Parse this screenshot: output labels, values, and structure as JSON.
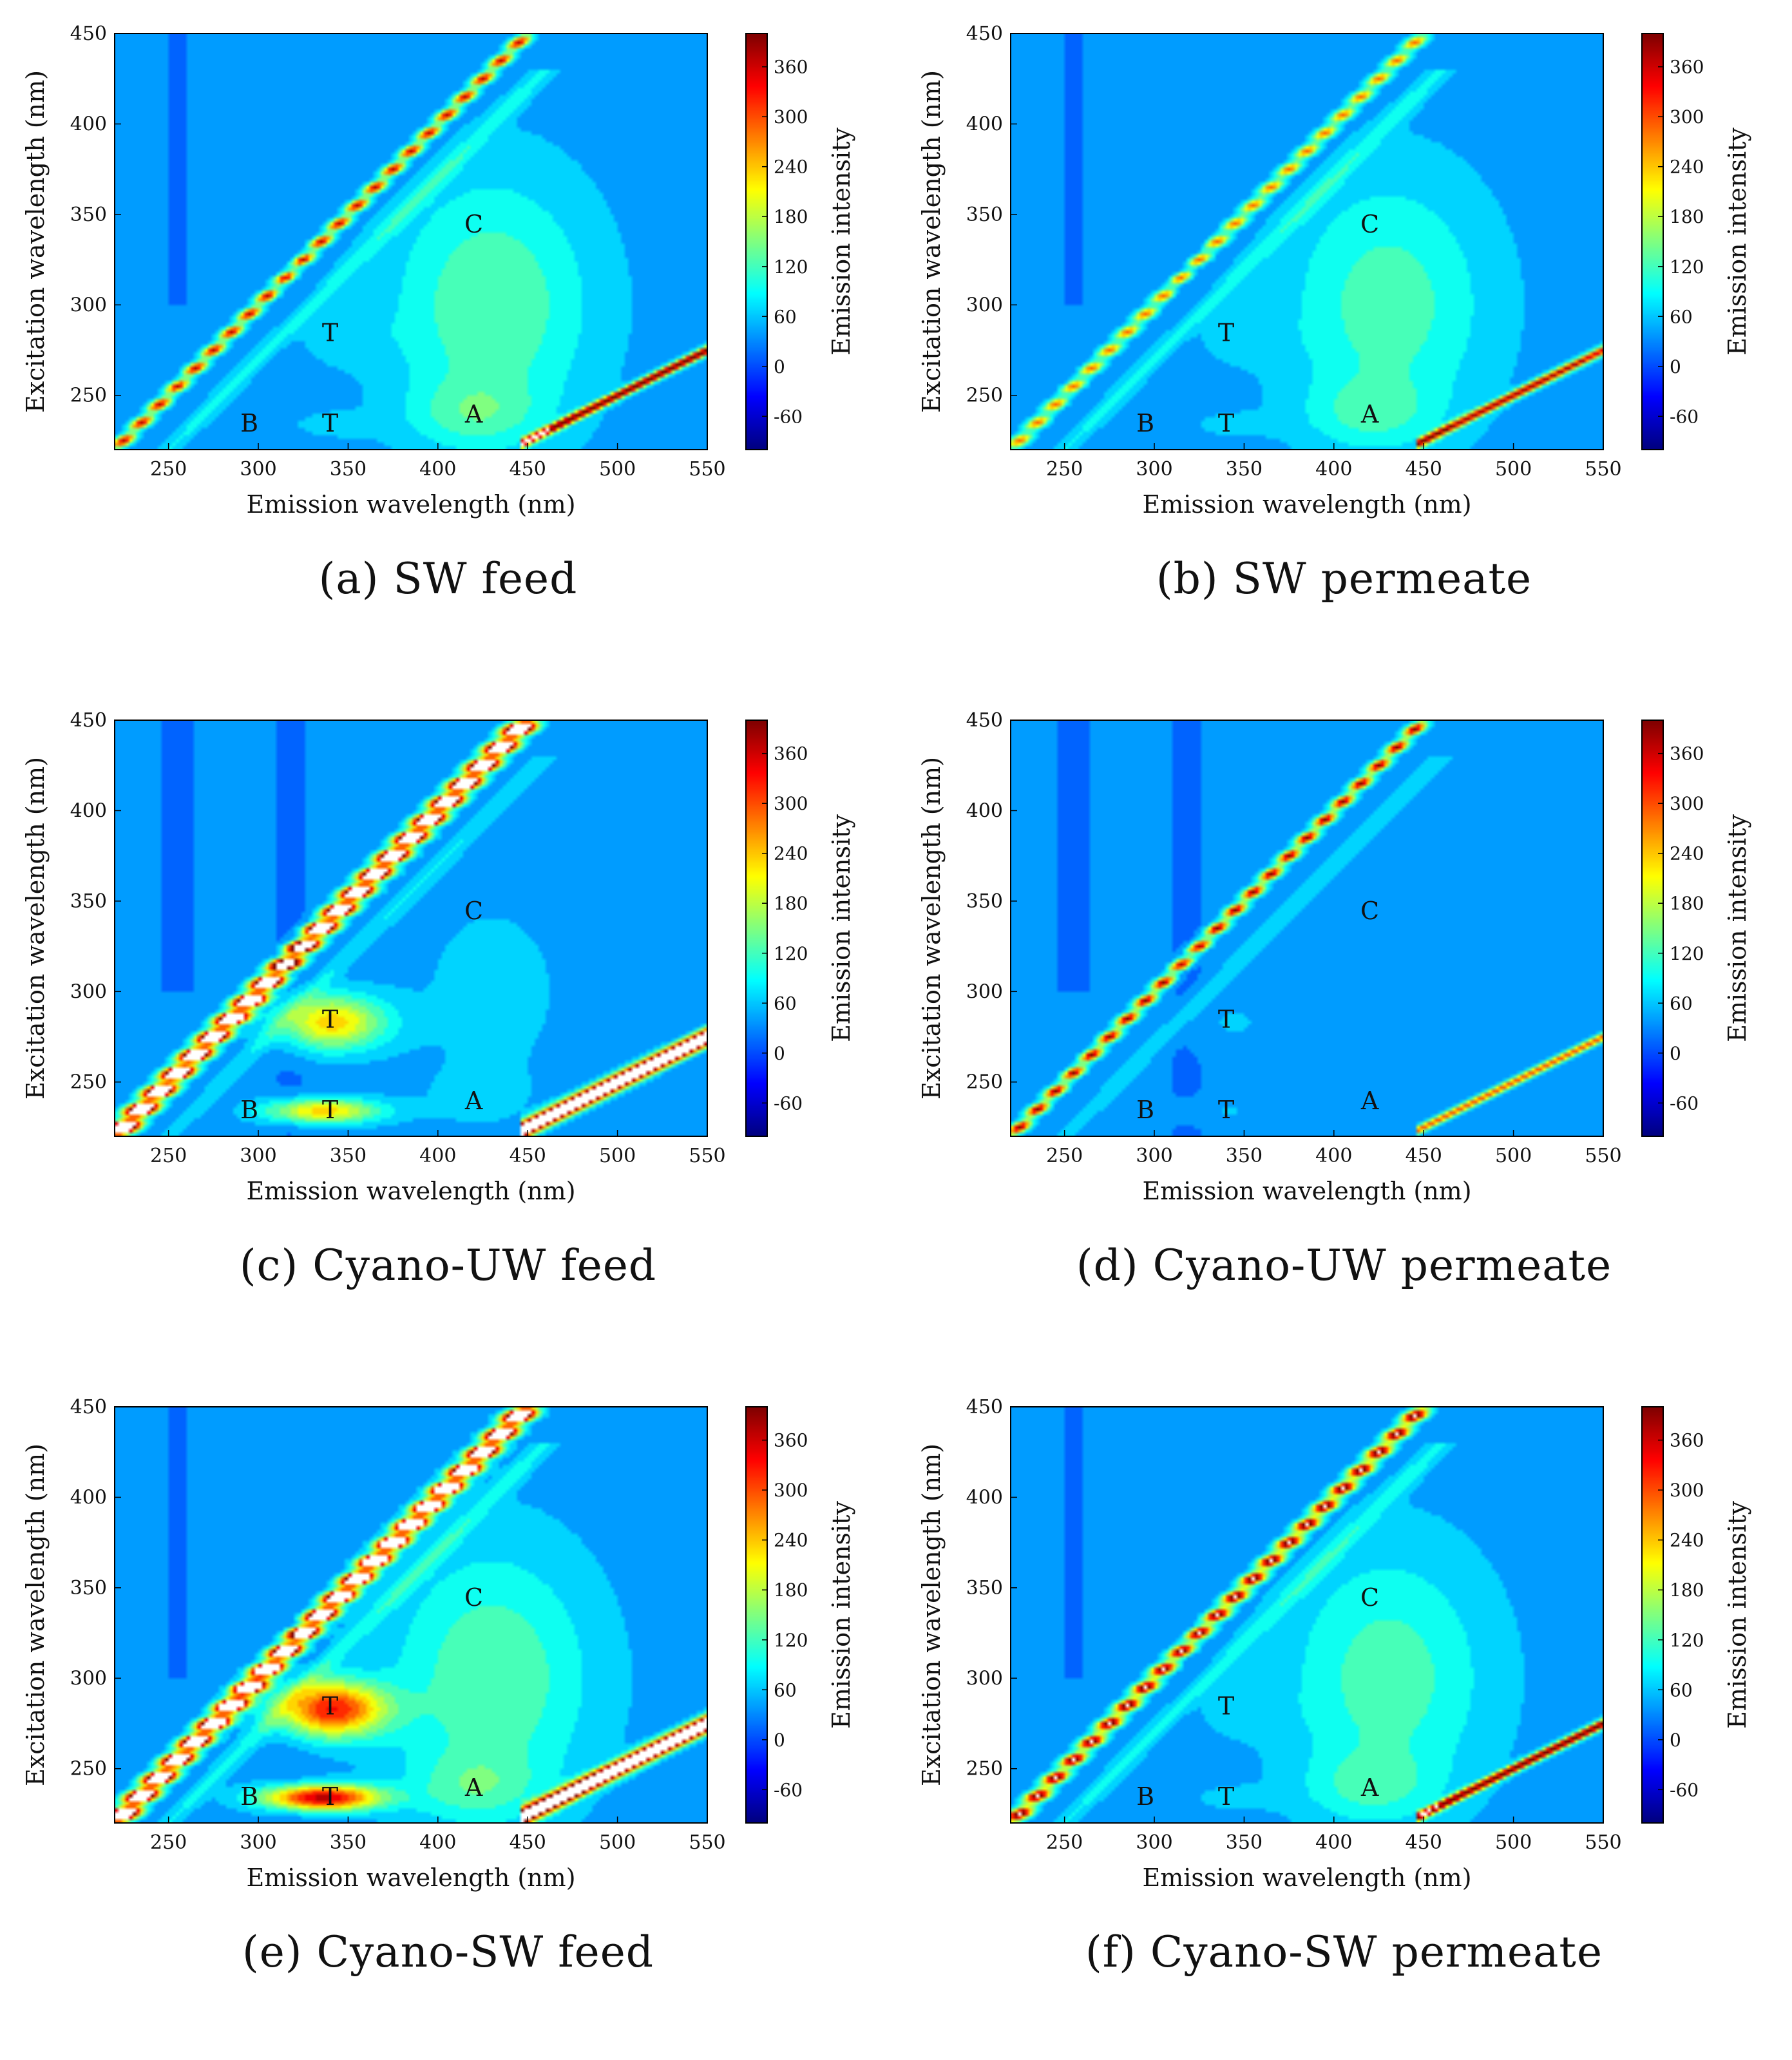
{
  "chart_data": [
    {
      "type": "heatmap",
      "caption": "(a) SW feed",
      "xlabel": "Emission wavelength (nm)",
      "ylabel": "Excitation wavelength (nm)",
      "colorbar_label": "Emission intensity",
      "xlim": [
        220,
        550
      ],
      "ylim": [
        220,
        450
      ],
      "xticks": [
        250,
        300,
        350,
        400,
        450,
        500,
        550
      ],
      "yticks": [
        250,
        300,
        350,
        400,
        450
      ],
      "clim": [
        -100,
        400
      ],
      "colorbar_ticks": [
        -60,
        0,
        60,
        120,
        180,
        240,
        300,
        360
      ],
      "peaks": [
        {
          "label": "B",
          "emission": 295,
          "excitation": 235
        },
        {
          "label": "T",
          "emission": 340,
          "excitation": 235
        },
        {
          "label": "T",
          "emission": 340,
          "excitation": 285
        },
        {
          "label": "A",
          "emission": 420,
          "excitation": 240
        },
        {
          "label": "C",
          "emission": 420,
          "excitation": 345
        }
      ],
      "features": {
        "base": 40,
        "humic": 95,
        "tryptophan_high": 30,
        "tryptophan_low": 30,
        "ray1": 330,
        "ray1_width": 5,
        "ray2": 50,
        "scatter2": 380,
        "scatter2_width": 5
      }
    },
    {
      "type": "heatmap",
      "caption": "(b) SW permeate",
      "xlabel": "Emission wavelength (nm)",
      "ylabel": "Excitation wavelength (nm)",
      "colorbar_label": "Emission intensity",
      "xlim": [
        220,
        550
      ],
      "ylim": [
        220,
        450
      ],
      "xticks": [
        250,
        300,
        350,
        400,
        450,
        500,
        550
      ],
      "yticks": [
        250,
        300,
        350,
        400,
        450
      ],
      "clim": [
        -100,
        400
      ],
      "colorbar_ticks": [
        -60,
        0,
        60,
        120,
        180,
        240,
        300,
        360
      ],
      "peaks": [
        {
          "label": "B",
          "emission": 295,
          "excitation": 235
        },
        {
          "label": "T",
          "emission": 340,
          "excitation": 235
        },
        {
          "label": "T",
          "emission": 340,
          "excitation": 285
        },
        {
          "label": "A",
          "emission": 420,
          "excitation": 240
        },
        {
          "label": "C",
          "emission": 420,
          "excitation": 345
        }
      ],
      "features": {
        "base": 40,
        "humic": 85,
        "tryptophan_high": 25,
        "tryptophan_low": 25,
        "ray1": 260,
        "ray1_width": 5,
        "ray2": 50,
        "scatter2": 330,
        "scatter2_width": 5
      }
    },
    {
      "type": "heatmap",
      "caption": "(c) Cyano-UW feed",
      "xlabel": "Emission wavelength (nm)",
      "ylabel": "Excitation wavelength (nm)",
      "colorbar_label": "Emission intensity",
      "xlim": [
        220,
        550
      ],
      "ylim": [
        220,
        450
      ],
      "xticks": [
        250,
        300,
        350,
        400,
        450,
        500,
        550
      ],
      "yticks": [
        250,
        300,
        350,
        400,
        450
      ],
      "clim": [
        -100,
        400
      ],
      "colorbar_ticks": [
        -60,
        0,
        60,
        120,
        180,
        240,
        300,
        360
      ],
      "peaks": [
        {
          "label": "B",
          "emission": 295,
          "excitation": 235
        },
        {
          "label": "T",
          "emission": 340,
          "excitation": 235
        },
        {
          "label": "T",
          "emission": 340,
          "excitation": 285
        },
        {
          "label": "A",
          "emission": 420,
          "excitation": 240
        },
        {
          "label": "C",
          "emission": 420,
          "excitation": 345
        }
      ],
      "features": {
        "base": 35,
        "humic": 25,
        "tryptophan_high": 200,
        "tryptophan_low": 200,
        "ray1": 700,
        "ray1_width": 8,
        "ray2": 40,
        "scatter2": 600,
        "scatter2_width": 9
      }
    },
    {
      "type": "heatmap",
      "caption": "(d) Cyano-UW permeate",
      "xlabel": "Emission wavelength (nm)",
      "ylabel": "Excitation wavelength (nm)",
      "colorbar_label": "Emission intensity",
      "xlim": [
        220,
        550
      ],
      "ylim": [
        220,
        450
      ],
      "xticks": [
        250,
        300,
        350,
        400,
        450,
        500,
        550
      ],
      "yticks": [
        250,
        300,
        350,
        400,
        450
      ],
      "clim": [
        -100,
        400
      ],
      "colorbar_ticks": [
        -60,
        0,
        60,
        120,
        180,
        240,
        300,
        360
      ],
      "peaks": [
        {
          "label": "B",
          "emission": 295,
          "excitation": 235
        },
        {
          "label": "T",
          "emission": 340,
          "excitation": 235
        },
        {
          "label": "T",
          "emission": 340,
          "excitation": 285
        },
        {
          "label": "A",
          "emission": 420,
          "excitation": 240
        },
        {
          "label": "C",
          "emission": 420,
          "excitation": 345
        }
      ],
      "features": {
        "base": 35,
        "humic": 10,
        "tryptophan_high": 20,
        "tryptophan_low": 20,
        "ray1": 360,
        "ray1_width": 5,
        "ray2": 40,
        "scatter2": 250,
        "scatter2_width": 5
      }
    },
    {
      "type": "heatmap",
      "caption": "(e) Cyano-SW feed",
      "xlabel": "Emission wavelength (nm)",
      "ylabel": "Excitation wavelength (nm)",
      "colorbar_label": "Emission intensity",
      "xlim": [
        220,
        550
      ],
      "ylim": [
        220,
        450
      ],
      "xticks": [
        250,
        300,
        350,
        400,
        450,
        500,
        550
      ],
      "yticks": [
        250,
        300,
        350,
        400,
        450
      ],
      "clim": [
        -100,
        400
      ],
      "colorbar_ticks": [
        -60,
        0,
        60,
        120,
        180,
        240,
        300,
        360
      ],
      "peaks": [
        {
          "label": "B",
          "emission": 295,
          "excitation": 235
        },
        {
          "label": "T",
          "emission": 340,
          "excitation": 235
        },
        {
          "label": "T",
          "emission": 340,
          "excitation": 285
        },
        {
          "label": "A",
          "emission": 420,
          "excitation": 240
        },
        {
          "label": "C",
          "emission": 420,
          "excitation": 345
        }
      ],
      "features": {
        "base": 40,
        "humic": 95,
        "tryptophan_high": 290,
        "tryptophan_low": 330,
        "ray1": 700,
        "ray1_width": 8,
        "ray2": 50,
        "scatter2": 600,
        "scatter2_width": 9
      }
    },
    {
      "type": "heatmap",
      "caption": "(f) Cyano-SW permeate",
      "xlabel": "Emission wavelength (nm)",
      "ylabel": "Excitation wavelength (nm)",
      "colorbar_label": "Emission intensity",
      "xlim": [
        220,
        550
      ],
      "ylim": [
        220,
        450
      ],
      "xticks": [
        250,
        300,
        350,
        400,
        450,
        500,
        550
      ],
      "yticks": [
        250,
        300,
        350,
        400,
        450
      ],
      "clim": [
        -100,
        400
      ],
      "colorbar_ticks": [
        -60,
        0,
        60,
        120,
        180,
        240,
        300,
        360
      ],
      "peaks": [
        {
          "label": "B",
          "emission": 295,
          "excitation": 235
        },
        {
          "label": "T",
          "emission": 340,
          "excitation": 235
        },
        {
          "label": "T",
          "emission": 340,
          "excitation": 285
        },
        {
          "label": "A",
          "emission": 420,
          "excitation": 240
        },
        {
          "label": "C",
          "emission": 420,
          "excitation": 345
        }
      ],
      "features": {
        "base": 40,
        "humic": 85,
        "tryptophan_high": 25,
        "tryptophan_low": 25,
        "ray1": 420,
        "ray1_width": 6,
        "ray2": 50,
        "scatter2": 380,
        "scatter2_width": 5
      }
    }
  ]
}
